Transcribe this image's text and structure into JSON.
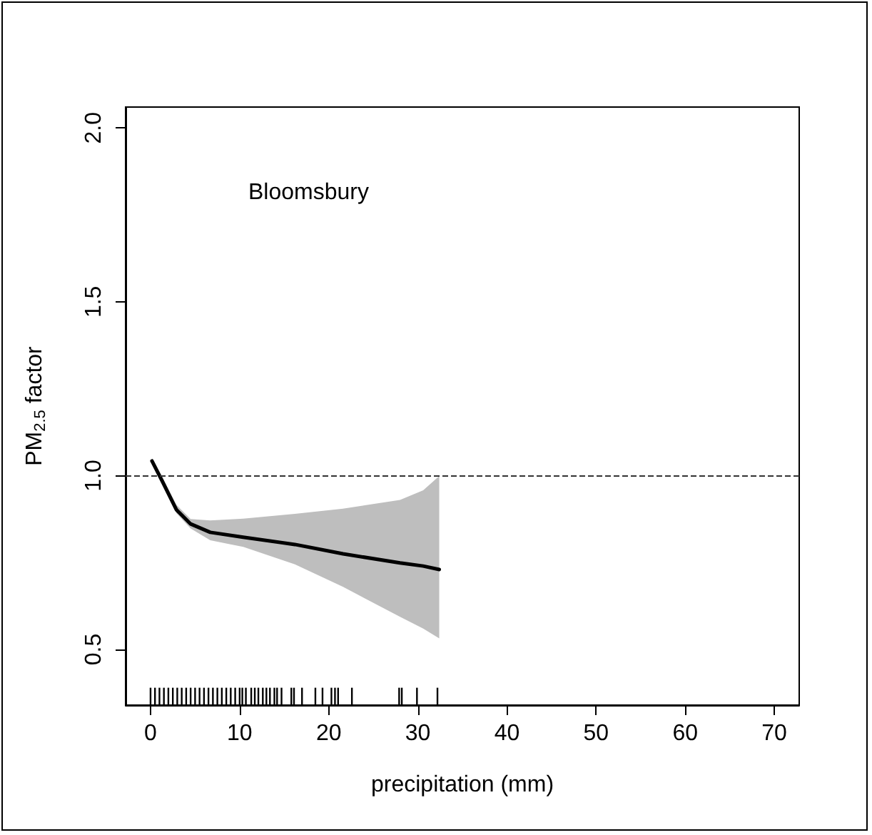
{
  "chart_data": {
    "type": "line",
    "xlabel": "precipitation (mm)",
    "ylabel": "PM$_{2.5}$ factor",
    "annotations": [
      "Bloomsbury"
    ],
    "xlim": [
      -2.8,
      72.8
    ],
    "ylim": [
      0.34,
      2.06
    ],
    "xticks": [
      0,
      10,
      20,
      30,
      40,
      50,
      60,
      70
    ],
    "yticks": [
      {
        "value": 0.5,
        "label": "0.5"
      },
      {
        "value": 1,
        "label": "1.0"
      },
      {
        "value": 1.5,
        "label": "1.5"
      },
      {
        "value": 2,
        "label": "2.0"
      }
    ],
    "grid": false,
    "marker": "none",
    "line_style": "solid",
    "ref_lines": [
      {
        "axis": "y",
        "value": 1,
        "color": "#333333",
        "line_style": "dashed"
      }
    ],
    "series": [
      {
        "color": "#000000",
        "x": [
          0.16,
          1.3,
          2.9,
          4.5,
          6.7,
          10.4,
          16.2,
          21.6,
          28,
          30.6,
          32.4
        ],
        "values": [
          1.042,
          0.985,
          0.902,
          0.861,
          0.837,
          0.823,
          0.802,
          0.775,
          0.749,
          0.74,
          0.73
        ],
        "upper": [
          1.05,
          0.995,
          0.916,
          0.875,
          0.871,
          0.876,
          0.89,
          0.905,
          0.93,
          0.958,
          0.999
        ],
        "lower": [
          1.035,
          0.975,
          0.892,
          0.848,
          0.814,
          0.795,
          0.745,
          0.68,
          0.594,
          0.56,
          0.532
        ]
      },
      {
        "type": "bar",
        "color": "#000000",
        "x": [
          0,
          0.5,
          1,
          1.5,
          2,
          2.5,
          3,
          3.5,
          4,
          4.5,
          5,
          5.5,
          6,
          6.5,
          7,
          7.5,
          8,
          8.5,
          9,
          9.5,
          10,
          10.3,
          10.7,
          11.3,
          11.7,
          12.1,
          12.6,
          13,
          13.4,
          13.9,
          14.2,
          14.7,
          15.8,
          16.1,
          17,
          18.5,
          19.3,
          20.3,
          20.7,
          21.05,
          22.6,
          27.9,
          28.2,
          29.9,
          32.2
        ],
        "base": [
          0.34,
          0.34,
          0.34,
          0.34,
          0.34,
          0.34,
          0.34,
          0.34,
          0.34,
          0.34,
          0.34,
          0.34,
          0.34,
          0.34,
          0.34,
          0.34,
          0.34,
          0.34,
          0.34,
          0.34,
          0.34,
          0.34,
          0.34,
          0.34,
          0.34,
          0.34,
          0.34,
          0.34,
          0.34,
          0.34,
          0.34,
          0.34,
          0.34,
          0.34,
          0.34,
          0.34,
          0.34,
          0.34,
          0.34,
          0.34,
          0.34,
          0.34,
          0.34,
          0.34,
          0.34
        ],
        "values": [
          0.05,
          0.05,
          0.05,
          0.05,
          0.05,
          0.05,
          0.05,
          0.05,
          0.05,
          0.05,
          0.05,
          0.05,
          0.05,
          0.05,
          0.05,
          0.05,
          0.05,
          0.05,
          0.05,
          0.05,
          0.05,
          0.05,
          0.05,
          0.05,
          0.05,
          0.05,
          0.05,
          0.05,
          0.05,
          0.05,
          0.05,
          0.05,
          0.05,
          0.05,
          0.05,
          0.05,
          0.05,
          0.05,
          0.05,
          0.05,
          0.05,
          0.05,
          0.05,
          0.05,
          0.05
        ]
      }
    ]
  }
}
